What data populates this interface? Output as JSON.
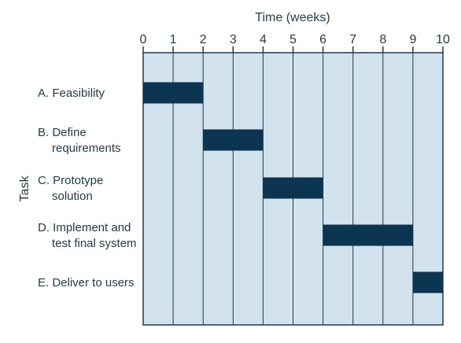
{
  "chart_data": {
    "type": "gantt",
    "xlabel": "Time (weeks)",
    "ylabel": "Task",
    "xlim": [
      0,
      10
    ],
    "x_ticks": [
      0,
      1,
      2,
      3,
      4,
      5,
      6,
      7,
      8,
      9,
      10
    ],
    "grid": true,
    "colors": {
      "plot_background": "#d2e3ee",
      "grid_line": "#1f3a4d",
      "bar": "#0b3550",
      "text": "#1f3a4d"
    },
    "tasks": [
      {
        "label_lines": [
          "A. Feasibility"
        ],
        "start": 0,
        "end": 2
      },
      {
        "label_lines": [
          "B. Define",
          "requirements"
        ],
        "start": 2,
        "end": 4
      },
      {
        "label_lines": [
          "C. Prototype",
          "solution"
        ],
        "start": 4,
        "end": 6
      },
      {
        "label_lines": [
          "D. Implement and",
          "test final system"
        ],
        "start": 6,
        "end": 9
      },
      {
        "label_lines": [
          "E. Deliver to users"
        ],
        "start": 9,
        "end": 10
      }
    ]
  }
}
